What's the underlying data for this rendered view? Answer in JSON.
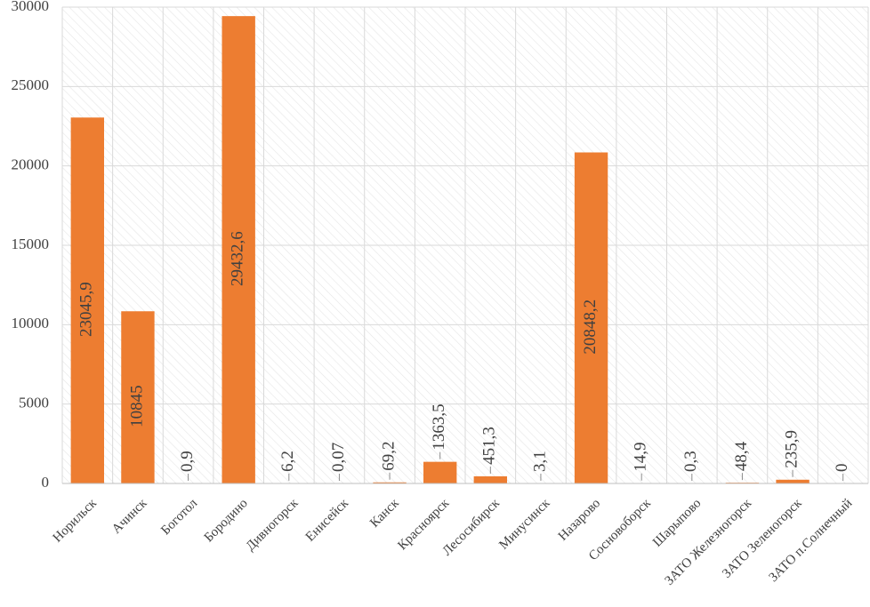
{
  "chart_data": {
    "type": "bar",
    "title": "",
    "xlabel": "",
    "ylabel": "",
    "ylim": [
      0,
      30000
    ],
    "yticks": [
      0,
      5000,
      10000,
      15000,
      20000,
      25000,
      30000
    ],
    "grid": true,
    "legend": "none",
    "bar_color": "#ed7d31",
    "hatch_color": "#e6e6e6",
    "categories": [
      "Норильск",
      "Ачинск",
      "Боготол",
      "Бородино",
      "Дивногорск",
      "Енисейск",
      "Канск",
      "Красноярск",
      "Лесосибирск",
      "Минусинск",
      "Назарово",
      "Сосновоборск",
      "Шарыпово",
      "ЗАТО Железногорск",
      "ЗАТО Зеленогорск",
      "ЗАТО п.Солнечный"
    ],
    "values": [
      23045.9,
      10845,
      0.9,
      29432.6,
      6.2,
      0.07,
      69.2,
      1363.5,
      451.3,
      3.1,
      20848.2,
      14.9,
      0.3,
      48.4,
      235.9,
      0
    ],
    "data_labels": [
      "23045,9",
      "10845",
      "0,9",
      "29432,6",
      "6,2",
      "0,07",
      "69,2",
      "1363,5",
      "451,3",
      "3,1",
      "20848,2",
      "14,9",
      "0,3",
      "48,4",
      "235,9",
      "0"
    ],
    "label_position": [
      "inside",
      "inside",
      "outside",
      "inside",
      "outside",
      "outside",
      "outside",
      "outside",
      "outside",
      "outside",
      "inside",
      "outside",
      "outside",
      "outside",
      "outside",
      "outside"
    ]
  }
}
